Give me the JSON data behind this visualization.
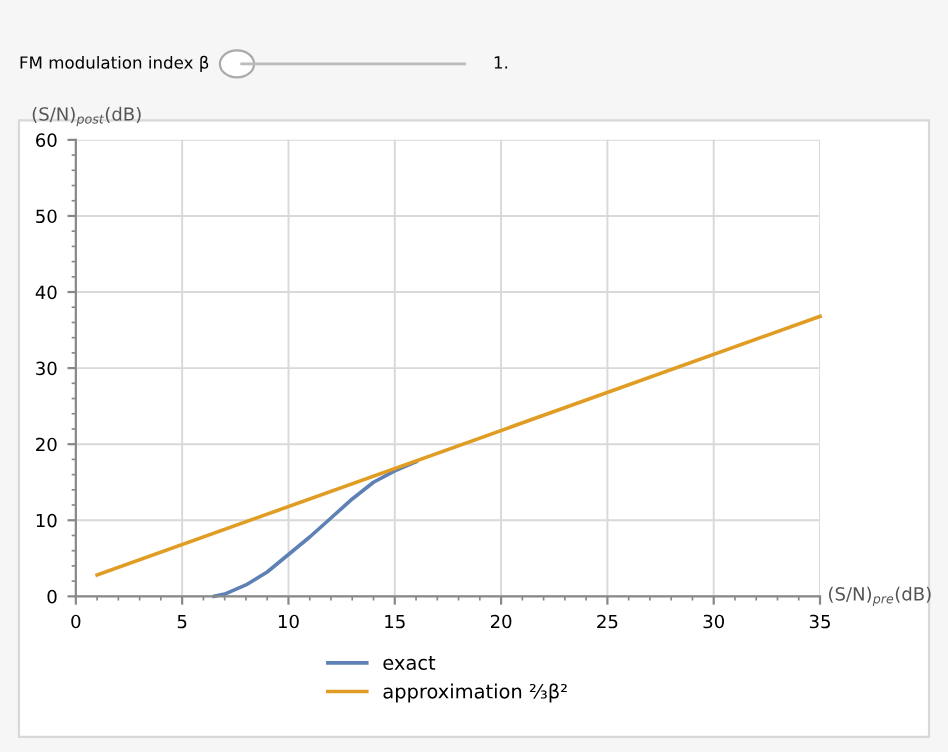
{
  "chart_data": {
    "type": "line",
    "xlabel": "(S/N)$_{pre}$(dB)",
    "ylabel": "(S/N)$_{post}$(dB)",
    "annotations": [
      "FM modulation index β",
      "1."
    ],
    "xlim": [
      0,
      35
    ],
    "ylim": [
      0,
      60
    ],
    "xticks": [
      0,
      5,
      10,
      15,
      20,
      25,
      30,
      35
    ],
    "yticks": [
      0,
      10,
      20,
      30,
      40,
      50,
      60
    ],
    "grid": true,
    "legend": "bottom",
    "line_style": "solid",
    "marker": "none",
    "series": [
      {
        "name": "exact",
        "color": "#5e81b5",
        "x": [
          6.5,
          7,
          8,
          9,
          10,
          11,
          12,
          13,
          14,
          15,
          16
        ],
        "values": [
          0,
          0.3,
          1.5,
          3.2,
          5.5,
          7.8,
          10.3,
          12.8,
          15,
          16.5,
          17.7
        ]
      },
      {
        "name": "approximation ⅔β²",
        "color": "#e19c24",
        "x": [
          1,
          35
        ],
        "values": [
          2.8,
          36.8
        ]
      }
    ]
  }
}
